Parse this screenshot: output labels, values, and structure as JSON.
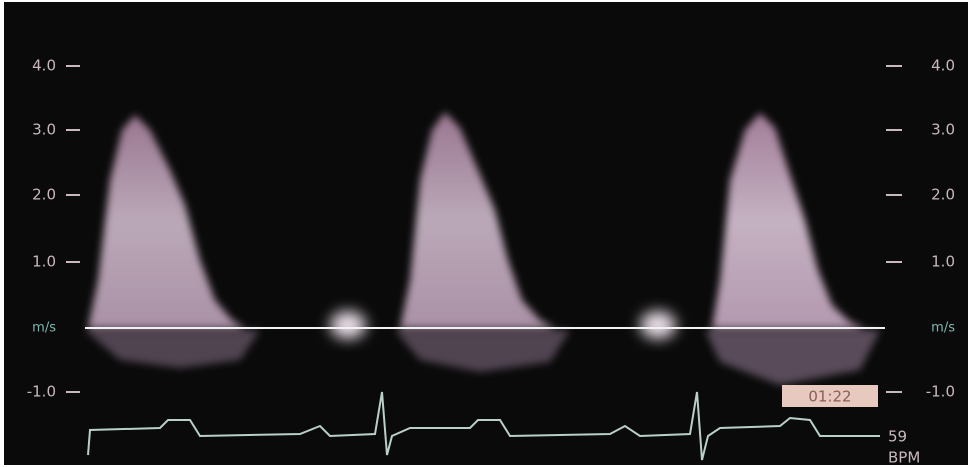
{
  "left_axis": {
    "labels": [
      "4.0",
      "3.0",
      "2.0",
      "1.0",
      "m/s",
      "-1.0"
    ]
  },
  "right_axis": {
    "labels": [
      "4.0",
      "3.0",
      "2.0",
      "1.0",
      "m/s",
      "-1.0"
    ]
  },
  "time_box": "01:22",
  "heart_rate": {
    "value": "59",
    "unit": "BPM"
  }
}
